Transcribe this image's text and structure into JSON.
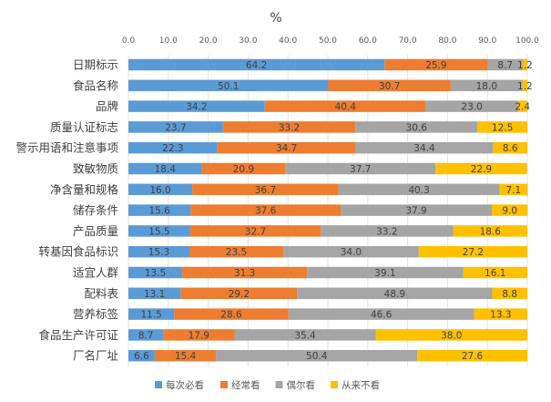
{
  "chart_data": {
    "type": "bar",
    "orientation": "horizontal",
    "stacked": true,
    "title": "%",
    "xlabel": "",
    "ylabel": "",
    "xlim": [
      0,
      100
    ],
    "x_ticks": [
      "0.0",
      "10.0",
      "20.0",
      "30.0",
      "40.0",
      "50.0",
      "60.0",
      "70.0",
      "80.0",
      "90.0",
      "100.0"
    ],
    "grid": true,
    "legend_position": "bottom",
    "categories": [
      "日期标示",
      "食品名称",
      "品牌",
      "质量认证标志",
      "警示用语和注意事项",
      "致敏物质",
      "净含量和规格",
      "储存条件",
      "产品质量",
      "转基因食品标识",
      "适宜人群",
      "配料表",
      "营养标签",
      "食品生产许可证",
      "厂名厂址"
    ],
    "series": [
      {
        "name": "每次必看",
        "color": "#5b9bd5",
        "values": [
          64.2,
          50.1,
          34.2,
          23.7,
          22.3,
          18.4,
          16.0,
          15.6,
          15.5,
          15.3,
          13.5,
          13.1,
          11.5,
          8.7,
          6.6
        ]
      },
      {
        "name": "经常看",
        "color": "#ed7d31",
        "values": [
          25.9,
          30.7,
          40.4,
          33.2,
          34.7,
          20.9,
          36.7,
          37.6,
          32.7,
          23.5,
          31.3,
          29.2,
          28.6,
          17.9,
          15.4
        ]
      },
      {
        "name": "偶尔看",
        "color": "#a5a5a5",
        "values": [
          8.7,
          18.0,
          23.0,
          30.6,
          34.4,
          37.7,
          40.3,
          37.9,
          33.2,
          34.0,
          39.1,
          48.9,
          46.6,
          35.4,
          50.4
        ]
      },
      {
        "name": "从来不看",
        "color": "#ffc000",
        "values": [
          1.2,
          1.2,
          2.4,
          12.5,
          8.6,
          22.9,
          7.1,
          9.0,
          18.6,
          27.2,
          16.1,
          8.8,
          13.3,
          38.0,
          27.6
        ]
      }
    ]
  }
}
